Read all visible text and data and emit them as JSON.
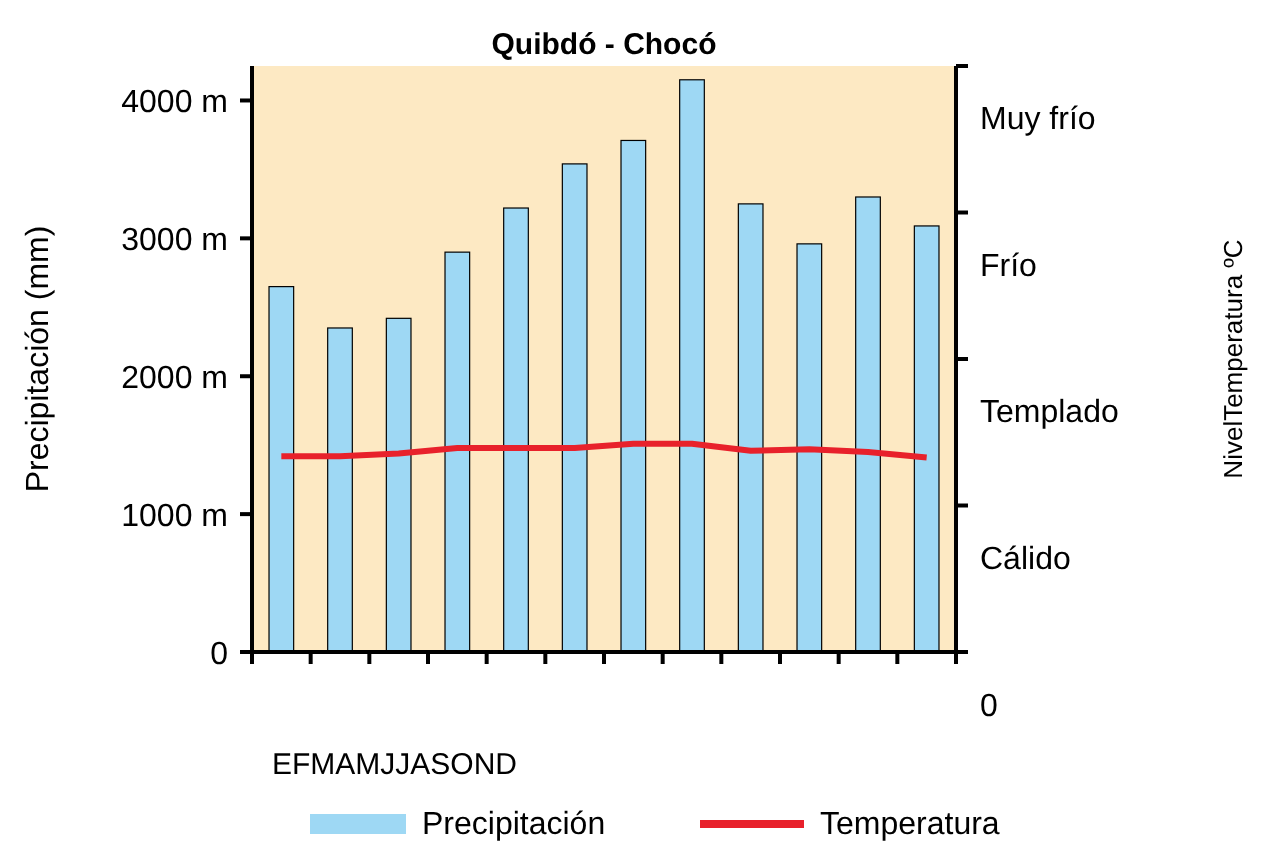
{
  "chart_data": {
    "type": "bar",
    "title": "Quibdó - Chocó",
    "xlabel": "EFMAMJJASOND",
    "ylabel": "Precipitación (mm)",
    "annotations": [
      "Muy frío",
      "Frío",
      "Templado",
      "Cálido",
      "0",
      "NivelTemperatura ºC"
    ],
    "categories": [
      null,
      null,
      null,
      null,
      null,
      null,
      null,
      null,
      null,
      null,
      null,
      null
    ],
    "series": [
      {
        "name": "Precipitación",
        "color": "#9ed8f4",
        "values": [
          2650,
          2350,
          2420,
          2900,
          3220,
          3540,
          3710,
          4150,
          3250,
          2960,
          3300,
          3090
        ]
      },
      {
        "name": "Temperatura",
        "type": "line",
        "color": "#e8212b",
        "values": [
          1420,
          1420,
          1440,
          1480,
          1480,
          1480,
          1510,
          1510,
          1460,
          1470,
          1450,
          1410
        ]
      }
    ],
    "ylim": [
      0,
      4250
    ],
    "yticks": [
      {
        "value": 0,
        "label": "0"
      },
      {
        "value": 1000,
        "label": "1000 m"
      },
      {
        "value": 2000,
        "label": "2000 m"
      },
      {
        "value": 3000,
        "label": "3000 m"
      },
      {
        "value": 4000,
        "label": "4000 m"
      }
    ],
    "legend": "bottom",
    "marker": "none",
    "line_style": "solid"
  }
}
